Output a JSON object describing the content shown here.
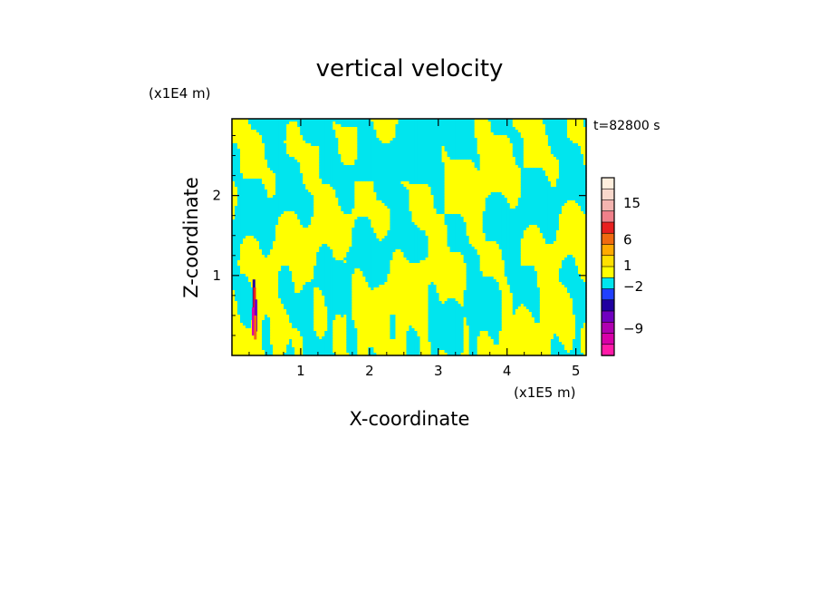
{
  "chart_data": {
    "type": "heatmap",
    "title": "vertical velocity",
    "xlabel": "X-coordinate",
    "ylabel": "Z-coordinate",
    "x_unit": "(x1E5 m)",
    "y_unit": "(x1E4 m)",
    "time_label": "t=82800 s",
    "xlim": [
      0,
      5.15
    ],
    "ylim": [
      0,
      2.96
    ],
    "x_ticks": [
      1,
      2,
      3,
      4,
      5
    ],
    "y_ticks": [
      1,
      2
    ],
    "colorbar": {
      "labels": [
        {
          "value": 15,
          "text": "15"
        },
        {
          "value": 6,
          "text": "6"
        },
        {
          "value": 1,
          "text": "1"
        },
        {
          "value": -2,
          "text": "−2"
        },
        {
          "value": -9,
          "text": "−9"
        }
      ],
      "bands": [
        {
          "color": "#ffeedd"
        },
        {
          "color": "#f8d8cc"
        },
        {
          "color": "#f4b4b0"
        },
        {
          "color": "#f0808a"
        },
        {
          "color": "#e82020"
        },
        {
          "color": "#f06a10"
        },
        {
          "color": "#ffaa00"
        },
        {
          "color": "#ffe000"
        },
        {
          "color": "#ffff00"
        },
        {
          "color": "#00e5ee"
        },
        {
          "color": "#2040ff"
        },
        {
          "color": "#2000a0"
        },
        {
          "color": "#7000c0"
        },
        {
          "color": "#b000b0"
        },
        {
          "color": "#d800a8"
        },
        {
          "color": "#ff1aa8"
        }
      ]
    },
    "field_colors": {
      "positive": "#ffff00",
      "negative": "#00e5ee"
    }
  }
}
